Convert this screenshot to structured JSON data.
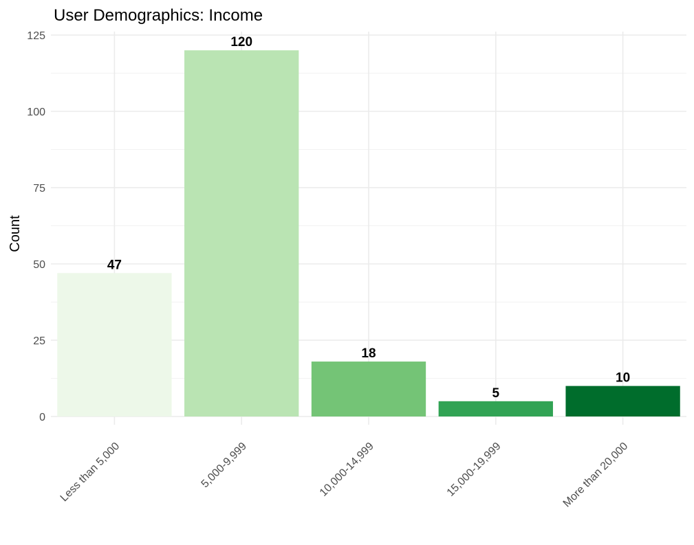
{
  "chart_data": {
    "type": "bar",
    "title": "User Demographics: Income",
    "xlabel": "",
    "ylabel": "Count",
    "categories": [
      "Less than 5,000",
      "5,000-9,999",
      "10,000-14,999",
      "15,000-19,999",
      "More than 20,000"
    ],
    "values": [
      47,
      120,
      18,
      5,
      10
    ],
    "colors": [
      "#edf8e9",
      "#bae4b3",
      "#74c476",
      "#31a354",
      "#006d2c"
    ],
    "ylim": [
      0,
      125
    ],
    "yticks": [
      0,
      25,
      50,
      75,
      100,
      125
    ],
    "grid": true,
    "legend": "none"
  }
}
